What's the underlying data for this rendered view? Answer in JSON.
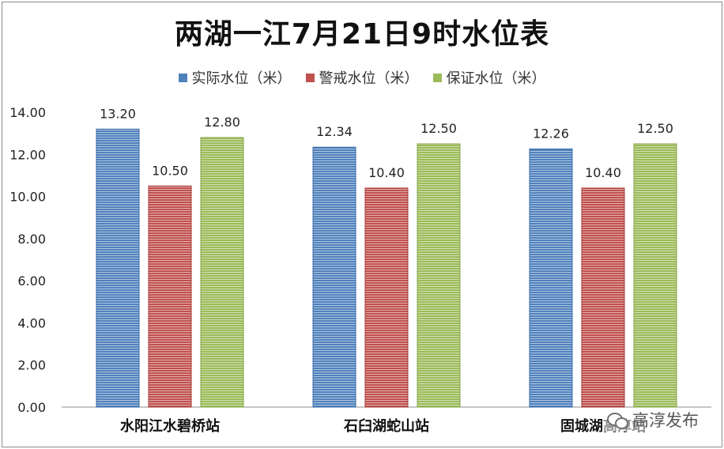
{
  "chart_data": {
    "type": "bar",
    "title": "两湖一江7月21日9时水位表",
    "categories": [
      "水阳江水碧桥站",
      "石臼湖蛇山站",
      "固城湖高淳站"
    ],
    "series": [
      {
        "name": "实际水位（米）",
        "color": "#4f81bd",
        "values": [
          13.2,
          12.34,
          12.26
        ],
        "labels": [
          "13.20",
          "12.34",
          "12.26"
        ]
      },
      {
        "name": "警戒水位（米）",
        "color": "#c0504d",
        "values": [
          10.5,
          10.4,
          10.4
        ],
        "labels": [
          "10.50",
          "10.40",
          "10.40"
        ]
      },
      {
        "name": "保证水位（米）",
        "color": "#9bbb59",
        "values": [
          12.8,
          12.5,
          12.5
        ],
        "labels": [
          "12.80",
          "12.50",
          "12.50"
        ]
      }
    ],
    "ylim": [
      0,
      14
    ],
    "yticks": [
      "0.00",
      "2.00",
      "4.00",
      "6.00",
      "8.00",
      "10.00",
      "12.00",
      "14.00"
    ],
    "ytick_values": [
      0,
      2,
      4,
      6,
      8,
      10,
      12,
      14
    ],
    "xlabel": "",
    "ylabel": "",
    "grid": false,
    "legend": "top-center"
  },
  "watermark": {
    "text": "高淳发布"
  }
}
